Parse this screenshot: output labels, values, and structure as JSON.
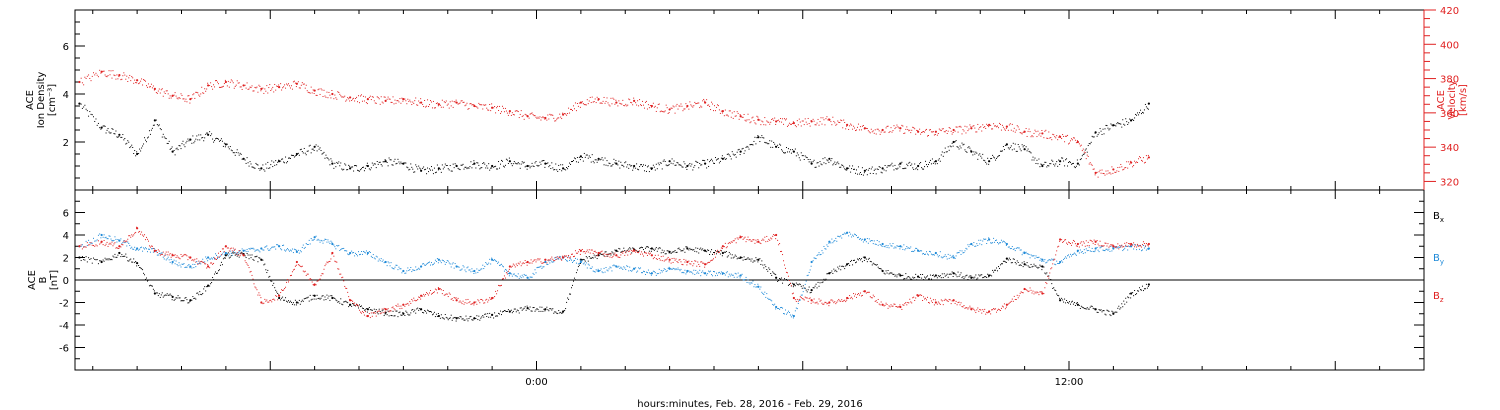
{
  "footer": {
    "xlabel": "hours:minutes, Feb. 28, 2016 - Feb. 29, 2016"
  },
  "colors": {
    "black": "#000000",
    "red": "#e02020",
    "blue": "#1f8ad8"
  },
  "chart_data": [
    {
      "type": "scatter",
      "panel": "top",
      "ylabel_left": [
        "ACE",
        "Ion Density",
        "[cm⁻³]"
      ],
      "ylabel_right": [
        "ACE",
        "Velocity",
        "[km/s]"
      ],
      "ylim_left": [
        0,
        7.5
      ],
      "ylim_right": [
        315,
        420
      ],
      "yticks_left": [
        "2",
        "4",
        "6"
      ],
      "yticks_right": [
        "320",
        "340",
        "360",
        "380",
        "400",
        "420"
      ],
      "x_ticks": [
        "0:00",
        "12:00"
      ],
      "xlim_hours": [
        -10.4,
        20.0
      ],
      "series": [
        {
          "axis": "left",
          "color": "black",
          "x": [
            -10.3,
            -9.8,
            -9.4,
            -9.0,
            -8.6,
            -8.2,
            -7.8,
            -7.4,
            -7.0,
            -6.6,
            -6.2,
            -5.8,
            -5.4,
            -5.0,
            -4.6,
            -4.2,
            -3.8,
            -3.4,
            -3.0,
            -2.6,
            -2.2,
            -1.8,
            -1.4,
            -1.0,
            -0.6,
            -0.2,
            0.2,
            0.6,
            1.0,
            1.4,
            1.8,
            2.2,
            2.6,
            3.0,
            3.4,
            3.8,
            4.2,
            4.6,
            5.0,
            5.4,
            5.8,
            6.2,
            6.6,
            7.0,
            7.4,
            7.8,
            8.2,
            8.6,
            9.0,
            9.4,
            9.8,
            10.2,
            10.6,
            11.0,
            11.4,
            11.8,
            12.2,
            12.6,
            13.0,
            13.4,
            13.8
          ],
          "y": [
            3.6,
            2.6,
            2.3,
            1.5,
            2.9,
            1.6,
            2.1,
            2.3,
            1.9,
            1.3,
            0.9,
            1.2,
            1.5,
            1.8,
            1.1,
            0.9,
            1.0,
            1.2,
            1.1,
            0.8,
            0.9,
            1.0,
            1.1,
            1.0,
            1.2,
            1.0,
            1.1,
            0.9,
            1.4,
            1.3,
            1.1,
            1.0,
            0.9,
            1.2,
            1.0,
            1.1,
            1.3,
            1.6,
            2.2,
            1.8,
            1.6,
            1.1,
            1.3,
            0.9,
            0.8,
            0.9,
            1.1,
            1.0,
            1.2,
            2.0,
            1.6,
            1.2,
            1.9,
            1.7,
            1.0,
            1.2,
            1.1,
            2.4,
            2.7,
            2.9,
            3.6
          ]
        },
        {
          "axis": "right",
          "color": "red",
          "x": [
            -10.3,
            -9.8,
            -9.4,
            -9.0,
            -8.6,
            -8.2,
            -7.8,
            -7.4,
            -7.0,
            -6.6,
            -6.2,
            -5.8,
            -5.4,
            -5.0,
            -4.6,
            -4.2,
            -3.8,
            -3.4,
            -3.0,
            -2.6,
            -2.2,
            -1.8,
            -1.4,
            -1.0,
            -0.6,
            -0.2,
            0.2,
            0.6,
            1.0,
            1.4,
            1.8,
            2.2,
            2.6,
            3.0,
            3.4,
            3.8,
            4.2,
            4.6,
            5.0,
            5.4,
            5.8,
            6.2,
            6.6,
            7.0,
            7.4,
            7.8,
            8.2,
            8.6,
            9.0,
            9.4,
            9.8,
            10.2,
            10.6,
            11.0,
            11.4,
            11.8,
            12.2,
            12.6,
            13.0,
            13.4,
            13.8
          ],
          "y": [
            378,
            384,
            382,
            379,
            374,
            370,
            368,
            376,
            378,
            376,
            374,
            375,
            377,
            373,
            371,
            369,
            368,
            367,
            368,
            366,
            365,
            366,
            364,
            363,
            361,
            358,
            357,
            359,
            366,
            368,
            366,
            367,
            364,
            362,
            364,
            366,
            361,
            358,
            356,
            355,
            354,
            355,
            356,
            353,
            351,
            350,
            351,
            349,
            349,
            350,
            351,
            353,
            352,
            349,
            348,
            346,
            343,
            325,
            327,
            331,
            334
          ]
        }
      ]
    },
    {
      "type": "scatter",
      "panel": "bottom",
      "ylabel_left": [
        "ACE",
        "B",
        "[nT]"
      ],
      "ylim": [
        -8,
        8
      ],
      "yticks": [
        "-6",
        "-4",
        "-2",
        "0",
        "2",
        "4",
        "6"
      ],
      "x_ticks": [
        "0:00",
        "12:00"
      ],
      "xlim_hours": [
        -10.4,
        20.0
      ],
      "series": [
        {
          "name": "Bx",
          "name_parts": [
            "B",
            "x"
          ],
          "color": "black",
          "x": [
            -10.3,
            -9.8,
            -9.4,
            -9.0,
            -8.6,
            -8.2,
            -7.8,
            -7.4,
            -7.0,
            -6.6,
            -6.2,
            -5.8,
            -5.4,
            -5.0,
            -4.6,
            -4.2,
            -3.8,
            -3.4,
            -3.0,
            -2.6,
            -2.2,
            -1.8,
            -1.4,
            -1.0,
            -0.6,
            -0.2,
            0.2,
            0.6,
            1.0,
            1.4,
            1.8,
            2.2,
            2.6,
            3.0,
            3.4,
            3.8,
            4.2,
            4.6,
            5.0,
            5.4,
            5.8,
            6.2,
            6.6,
            7.0,
            7.4,
            7.8,
            8.2,
            8.6,
            9.0,
            9.4,
            9.8,
            10.2,
            10.6,
            11.0,
            11.4,
            11.8,
            12.2,
            12.6,
            13.0,
            13.4,
            13.8
          ],
          "y": [
            2.0,
            1.6,
            2.4,
            1.5,
            -1.2,
            -1.5,
            -1.8,
            -0.5,
            2.2,
            2.3,
            1.8,
            -1.6,
            -2.0,
            -1.4,
            -1.6,
            -2.2,
            -2.6,
            -2.9,
            -3.0,
            -2.6,
            -3.2,
            -3.4,
            -3.4,
            -3.1,
            -2.8,
            -2.5,
            -2.6,
            -2.8,
            1.8,
            2.2,
            2.6,
            2.7,
            2.8,
            2.5,
            2.8,
            2.6,
            2.4,
            2.0,
            1.8,
            0.2,
            -0.4,
            -0.9,
            0.6,
            1.4,
            2.0,
            0.8,
            0.4,
            0.3,
            0.4,
            0.6,
            0.2,
            0.4,
            1.9,
            1.4,
            1.2,
            -1.8,
            -2.2,
            -2.6,
            -3.0,
            -1.2,
            -0.4
          ]
        },
        {
          "name": "By",
          "name_parts": [
            "B",
            "y"
          ],
          "color": "blue",
          "x": [
            -10.3,
            -9.8,
            -9.4,
            -9.0,
            -8.6,
            -8.2,
            -7.8,
            -7.4,
            -7.0,
            -6.6,
            -6.2,
            -5.8,
            -5.4,
            -5.0,
            -4.6,
            -4.2,
            -3.8,
            -3.4,
            -3.0,
            -2.6,
            -2.2,
            -1.8,
            -1.4,
            -1.0,
            -0.6,
            -0.2,
            0.2,
            0.6,
            1.0,
            1.4,
            1.8,
            2.2,
            2.6,
            3.0,
            3.4,
            3.8,
            4.2,
            4.6,
            5.0,
            5.4,
            5.8,
            6.2,
            6.6,
            7.0,
            7.4,
            7.8,
            8.2,
            8.6,
            9.0,
            9.4,
            9.8,
            10.2,
            10.6,
            11.0,
            11.4,
            11.8,
            12.2,
            12.6,
            13.0,
            13.4,
            13.8
          ],
          "y": [
            3.0,
            4.0,
            3.5,
            2.8,
            2.6,
            1.6,
            1.2,
            2.0,
            2.4,
            2.6,
            2.8,
            3.0,
            2.5,
            3.8,
            3.2,
            2.4,
            2.4,
            1.6,
            0.8,
            1.2,
            1.8,
            1.2,
            0.8,
            1.8,
            0.6,
            0.2,
            1.6,
            2.0,
            1.6,
            0.8,
            1.2,
            1.0,
            0.6,
            1.0,
            0.8,
            0.6,
            0.6,
            0.4,
            -0.6,
            -2.4,
            -3.2,
            1.6,
            3.4,
            4.2,
            3.6,
            3.2,
            3.0,
            2.6,
            2.4,
            2.0,
            3.2,
            3.6,
            3.2,
            2.4,
            1.8,
            1.6,
            2.6,
            2.8,
            2.8,
            3.0,
            2.8
          ]
        },
        {
          "name": "Bz",
          "name_parts": [
            "B",
            "z"
          ],
          "color": "red",
          "x": [
            -10.3,
            -9.8,
            -9.4,
            -9.0,
            -8.6,
            -8.2,
            -7.8,
            -7.4,
            -7.0,
            -6.6,
            -6.2,
            -5.8,
            -5.4,
            -5.0,
            -4.6,
            -4.2,
            -3.8,
            -3.4,
            -3.0,
            -2.6,
            -2.2,
            -1.8,
            -1.4,
            -1.0,
            -0.6,
            -0.2,
            0.2,
            0.6,
            1.0,
            1.4,
            1.8,
            2.2,
            2.6,
            3.0,
            3.4,
            3.8,
            4.2,
            4.6,
            5.0,
            5.4,
            5.8,
            6.2,
            6.6,
            7.0,
            7.4,
            7.8,
            8.2,
            8.6,
            9.0,
            9.4,
            9.8,
            10.2,
            10.6,
            11.0,
            11.4,
            11.8,
            12.2,
            12.6,
            13.0,
            13.4,
            13.8
          ],
          "y": [
            3.0,
            3.4,
            3.0,
            4.6,
            2.6,
            2.2,
            2.0,
            1.2,
            3.0,
            2.2,
            -2.0,
            -1.4,
            1.6,
            -0.4,
            2.4,
            -1.8,
            -3.2,
            -2.6,
            -2.2,
            -1.4,
            -0.8,
            -1.8,
            -2.0,
            -1.6,
            1.2,
            1.6,
            1.8,
            2.0,
            2.6,
            2.4,
            2.2,
            2.6,
            2.2,
            1.8,
            1.6,
            1.4,
            3.0,
            3.8,
            3.4,
            4.0,
            -1.6,
            -1.8,
            -2.0,
            -1.6,
            -1.0,
            -2.2,
            -2.4,
            -1.4,
            -2.0,
            -1.8,
            -2.6,
            -2.8,
            -2.2,
            -0.8,
            -1.2,
            3.6,
            3.2,
            3.4,
            3.0,
            3.2,
            3.2
          ]
        }
      ]
    }
  ]
}
